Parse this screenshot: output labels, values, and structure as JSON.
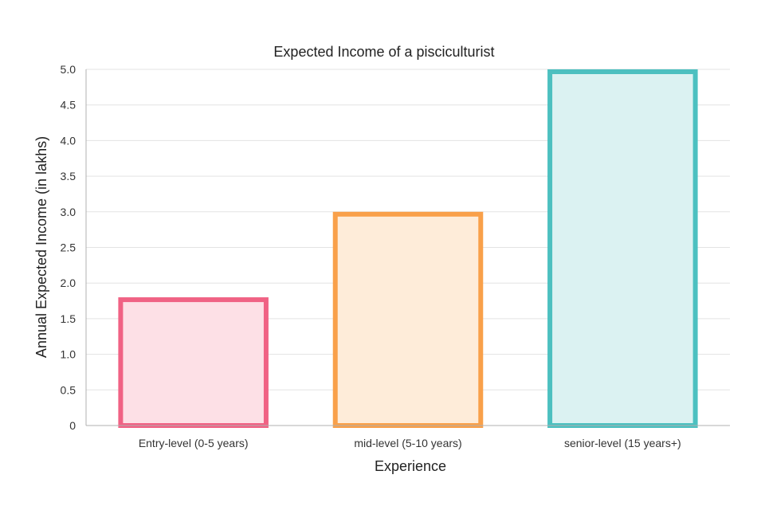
{
  "chart_data": {
    "type": "bar",
    "title": "Expected Income of a pisciculturist",
    "xlabel": "Experience",
    "ylabel": "Annual Expected Income (in lakhs)",
    "categories": [
      "Entry-level (0-5 years)",
      "mid-level (5-10 years)",
      "senior-level (15 years+)"
    ],
    "values": [
      1.8,
      3.0,
      5.0
    ],
    "ylim": [
      0,
      5.0
    ],
    "yticks": [
      "0",
      "0.5",
      "1.0",
      "1.5",
      "2.0",
      "2.5",
      "3.0",
      "3.5",
      "4.0",
      "4.5",
      "5.0"
    ],
    "grid": true,
    "legend": "none",
    "colors": {
      "border": [
        "#f06284",
        "#f9a04a",
        "#4cc0c0"
      ],
      "fill": [
        "#fde0e6",
        "#feecd9",
        "#dbf2f2"
      ]
    }
  }
}
